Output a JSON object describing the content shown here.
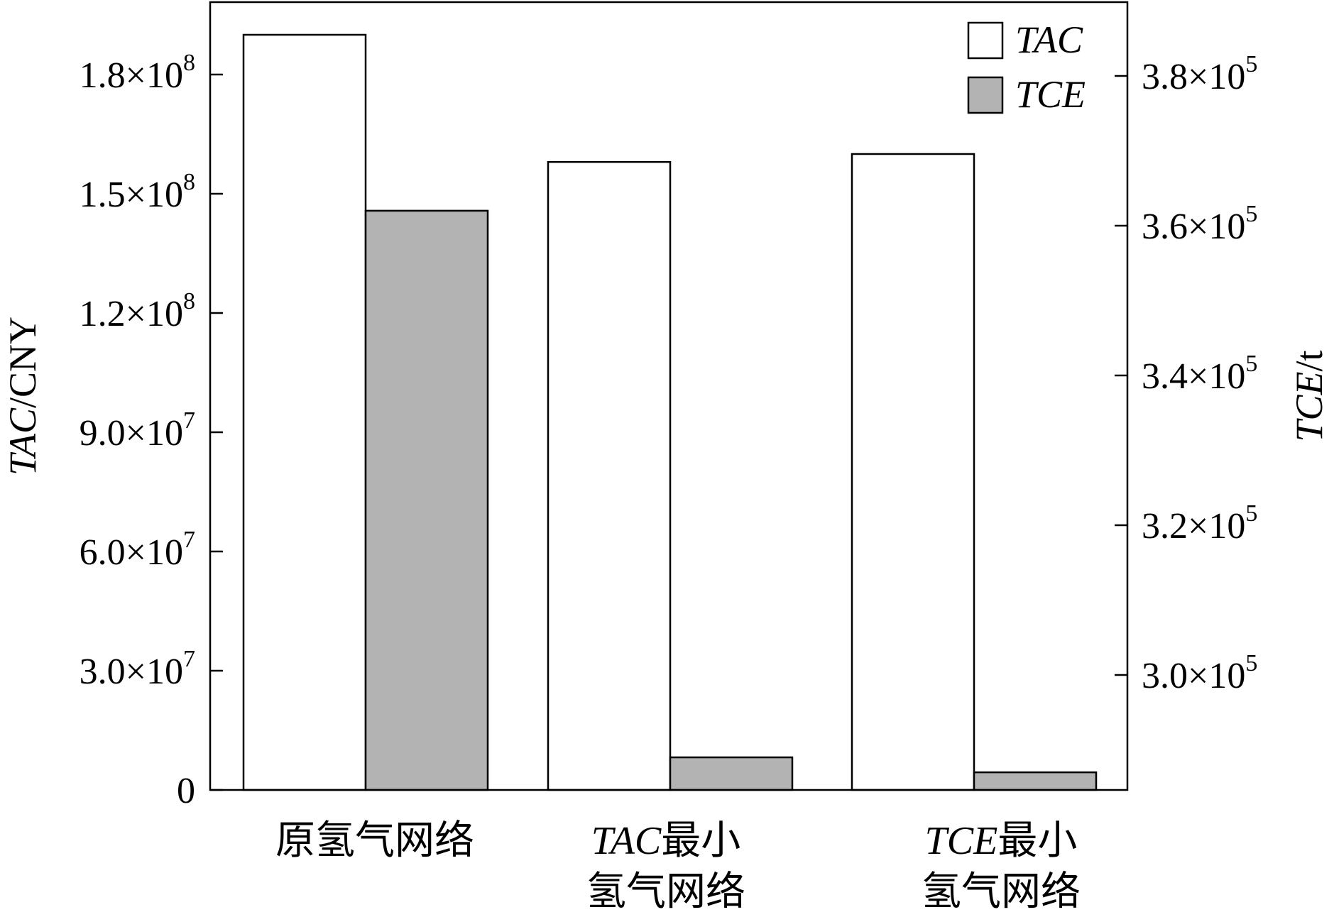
{
  "chart_data": {
    "type": "bar",
    "categories": [
      {
        "lines": [
          {
            "italic": "",
            "text": "原氢气网络"
          }
        ]
      },
      {
        "lines": [
          {
            "italic": "TAC",
            "text": "最小"
          },
          {
            "italic": "",
            "text": "氢气网络"
          }
        ]
      },
      {
        "lines": [
          {
            "italic": "TCE",
            "text": "最小"
          },
          {
            "italic": "",
            "text": "氢气网络"
          }
        ]
      }
    ],
    "series": [
      {
        "name": "TAC",
        "axis": "left",
        "color": "#ffffff",
        "values": [
          190000000,
          158000000,
          160000000
        ]
      },
      {
        "name": "TCE",
        "axis": "right",
        "color": "#b3b3b3",
        "values": [
          362000,
          289000,
          287000
        ]
      }
    ],
    "left_axis": {
      "label_italic": "TAC",
      "label_rest": "/CNY",
      "range": [
        0,
        200000000
      ],
      "ticks": [
        {
          "value": 0,
          "mantissa": "0",
          "exp": ""
        },
        {
          "value": 30000000,
          "mantissa": "3.0×10",
          "exp": "7"
        },
        {
          "value": 60000000,
          "mantissa": "6.0×10",
          "exp": "7"
        },
        {
          "value": 90000000,
          "mantissa": "9.0×10",
          "exp": "7"
        },
        {
          "value": 120000000,
          "mantissa": "1.2×10",
          "exp": "8"
        },
        {
          "value": 150000000,
          "mantissa": "1.5×10",
          "exp": "8"
        },
        {
          "value": 180000000,
          "mantissa": "1.8×10",
          "exp": "8"
        }
      ]
    },
    "right_axis": {
      "label_italic": "TCE",
      "label_rest": "/t",
      "range": [
        284600,
        386500
      ],
      "ticks": [
        {
          "value": 300000,
          "mantissa": "3.0×10",
          "exp": "5"
        },
        {
          "value": 320000,
          "mantissa": "3.2×10",
          "exp": "5"
        },
        {
          "value": 340000,
          "mantissa": "3.4×10",
          "exp": "5"
        },
        {
          "value": 360000,
          "mantissa": "3.6×10",
          "exp": "5"
        },
        {
          "value": 380000,
          "mantissa": "3.8×10",
          "exp": "5"
        }
      ]
    },
    "legend": {
      "placement": "top-right",
      "entries": [
        {
          "label": "TAC",
          "color": "#ffffff"
        },
        {
          "label": "TCE",
          "color": "#b3b3b3"
        }
      ]
    },
    "grid": false
  }
}
